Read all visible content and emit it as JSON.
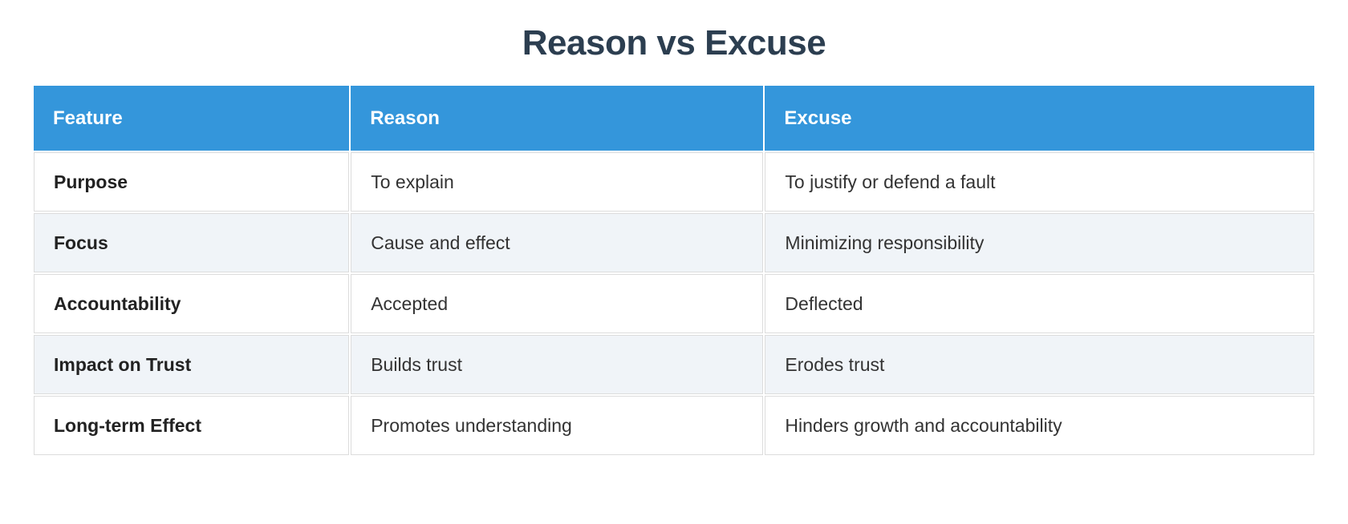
{
  "title": "Reason vs Excuse",
  "colors": {
    "header_bg": "#3496db",
    "header_text": "#ffffff",
    "title_color": "#2c3e50",
    "row_bg": "#ffffff",
    "row_alt_bg": "#f0f4f8",
    "border": "#dcdcdc",
    "label_text": "#222222",
    "value_text": "#333333",
    "page_bg": "#ffffff"
  },
  "table": {
    "columns": [
      "Feature",
      "Reason",
      "Excuse"
    ],
    "rows": [
      {
        "feature": "Purpose",
        "reason": "To explain",
        "excuse": "To justify or defend a fault"
      },
      {
        "feature": "Focus",
        "reason": "Cause and effect",
        "excuse": "Minimizing responsibility"
      },
      {
        "feature": "Accountability",
        "reason": "Accepted",
        "excuse": "Deflected"
      },
      {
        "feature": "Impact on Trust",
        "reason": "Builds trust",
        "excuse": "Erodes trust"
      },
      {
        "feature": "Long-term Effect",
        "reason": "Promotes understanding",
        "excuse": "Hinders growth and accountability"
      }
    ]
  }
}
